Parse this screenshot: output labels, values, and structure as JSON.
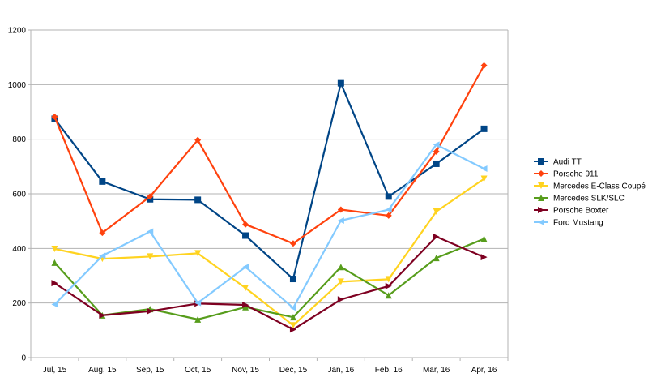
{
  "chart_data": {
    "type": "line",
    "title": "",
    "xlabel": "",
    "ylabel": "",
    "ylim": [
      0,
      1200
    ],
    "yticks": [
      0,
      200,
      400,
      600,
      800,
      1000,
      1200
    ],
    "grid": "horizontal",
    "legend_position": "right",
    "categories": [
      "Jul, 15",
      "Aug, 15",
      "Sep, 15",
      "Oct, 15",
      "Nov, 15",
      "Dec, 15",
      "Jan, 16",
      "Feb, 16",
      "Mar, 16",
      "Apr, 16"
    ],
    "series": [
      {
        "name": "Audi TT",
        "color": "#004586",
        "marker": "square",
        "values": [
          875,
          645,
          580,
          578,
          447,
          288,
          1005,
          590,
          710,
          838
        ]
      },
      {
        "name": "Porsche 911",
        "color": "#ff420e",
        "marker": "diamond",
        "values": [
          882,
          457,
          590,
          797,
          488,
          418,
          542,
          520,
          755,
          1070
        ]
      },
      {
        "name": "Mercedes E-Class Coupé",
        "color": "#ffd320",
        "marker": "triangle-down",
        "values": [
          398,
          362,
          370,
          382,
          255,
          118,
          278,
          287,
          535,
          655
        ]
      },
      {
        "name": "Mercedes SLK/SLC",
        "color": "#579d1c",
        "marker": "triangle-up",
        "values": [
          348,
          155,
          178,
          140,
          185,
          148,
          332,
          228,
          365,
          435
        ]
      },
      {
        "name": "Porsche Boxter",
        "color": "#7e0021",
        "marker": "triangle-right",
        "values": [
          273,
          155,
          170,
          198,
          193,
          103,
          213,
          262,
          443,
          368
        ]
      },
      {
        "name": "Ford Mustang",
        "color": "#83caff",
        "marker": "triangle-left",
        "values": [
          195,
          373,
          462,
          200,
          332,
          182,
          502,
          542,
          780,
          692
        ]
      }
    ]
  }
}
